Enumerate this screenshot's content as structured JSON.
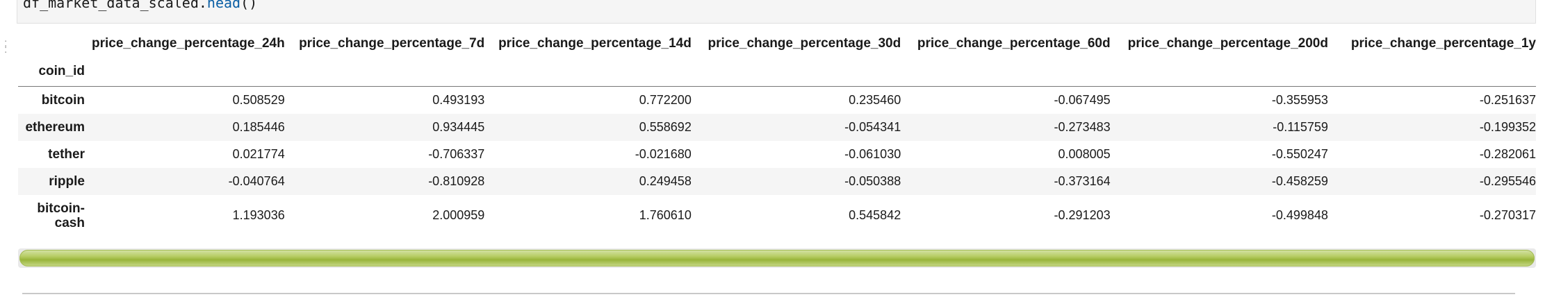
{
  "code_cell": {
    "prefix": "df_market_data_scaled.",
    "method": "head",
    "suffix": "()"
  },
  "table": {
    "index_name": "coin_id",
    "columns": [
      "price_change_percentage_24h",
      "price_change_percentage_7d",
      "price_change_percentage_14d",
      "price_change_percentage_30d",
      "price_change_percentage_60d",
      "price_change_percentage_200d",
      "price_change_percentage_1y"
    ],
    "rows": [
      {
        "index": "bitcoin",
        "values": [
          "0.508529",
          "0.493193",
          "0.772200",
          "0.235460",
          "-0.067495",
          "-0.355953",
          "-0.251637"
        ]
      },
      {
        "index": "ethereum",
        "values": [
          "0.185446",
          "0.934445",
          "0.558692",
          "-0.054341",
          "-0.273483",
          "-0.115759",
          "-0.199352"
        ]
      },
      {
        "index": "tether",
        "values": [
          "0.021774",
          "-0.706337",
          "-0.021680",
          "-0.061030",
          "0.008005",
          "-0.550247",
          "-0.282061"
        ]
      },
      {
        "index": "ripple",
        "values": [
          "-0.040764",
          "-0.810928",
          "0.249458",
          "-0.050388",
          "-0.373164",
          "-0.458259",
          "-0.295546"
        ]
      },
      {
        "index": "bitcoin-cash",
        "values": [
          "1.193036",
          "2.000959",
          "1.760610",
          "0.545842",
          "-0.291203",
          "-0.499848",
          "-0.270317"
        ]
      }
    ]
  },
  "scrollbar": {
    "thumb_fraction": 1.0,
    "thumb_color": "#b6cc63"
  }
}
